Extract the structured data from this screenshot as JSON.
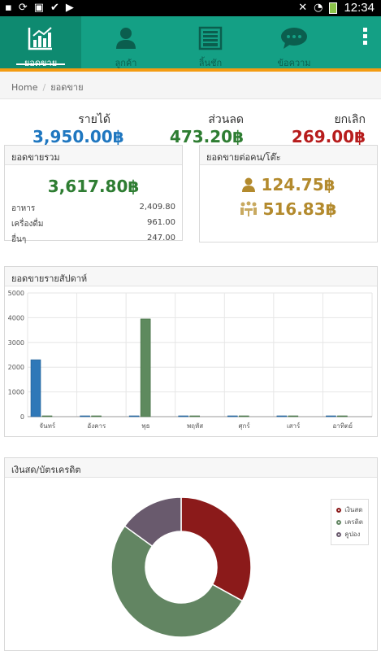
{
  "statusbar": {
    "time": "12:34"
  },
  "nav": {
    "tabs": [
      {
        "label": "ยอดขาย",
        "icon": "bar-chart-icon",
        "active": true
      },
      {
        "label": "ลูกค้า",
        "icon": "user-icon",
        "active": false
      },
      {
        "label": "ลิ้นชัก",
        "icon": "drawer-icon",
        "active": false
      },
      {
        "label": "ข้อความ",
        "icon": "chat-icon",
        "active": false
      }
    ]
  },
  "breadcrumb": {
    "home": "Home",
    "current": "ยอดขาย"
  },
  "summary": {
    "revenue": {
      "title": "รายได้",
      "value": "3,950.00฿",
      "color": "#1f77c0"
    },
    "discount": {
      "title": "ส่วนลด",
      "value": "473.20฿",
      "color": "#2e7d32"
    },
    "cancel": {
      "title": "ยกเลิก",
      "value": "269.00฿",
      "color": "#b71c1c"
    }
  },
  "total_sales": {
    "title": "ยอดขายรวม",
    "value": "3,617.80฿",
    "rows": [
      {
        "label": "อาหาร",
        "value": "2,409.80"
      },
      {
        "label": "เครื่องดื่ม",
        "value": "961.00"
      },
      {
        "label": "อื่นๆ",
        "value": "247.00"
      }
    ]
  },
  "per_customer": {
    "title": "ยอดขายต่อคน/โต๊ะ",
    "per_person": "124.75฿",
    "per_table": "516.83฿"
  },
  "weekly": {
    "title": "ยอดขายรายสัปดาห์",
    "chart_data": {
      "type": "bar",
      "categories": [
        "จันทร์",
        "อังคาร",
        "พุธ",
        "พฤหัส",
        "ศุกร์",
        "เสาร์",
        "อาทิตย์"
      ],
      "series": [
        {
          "values": [
            2300,
            0,
            0,
            0,
            0,
            0,
            0
          ],
          "color": "#2f78b8"
        },
        {
          "values": [
            0,
            0,
            3950,
            0,
            0,
            0,
            0
          ],
          "color": "#5e8a5e"
        }
      ],
      "ylim": [
        0,
        5000
      ],
      "yticks": [
        0,
        1000,
        2000,
        3000,
        4000,
        5000
      ],
      "grid": true
    }
  },
  "payment": {
    "title": "เงินสด/บัตรเครดิต",
    "chart_data": {
      "type": "pie",
      "labels": [
        "เงินสด",
        "เครดิต",
        "คูปอง"
      ],
      "values": [
        33,
        52,
        15
      ],
      "colors": [
        "#8b1a1a",
        "#628562",
        "#695a6d"
      ],
      "legend": "top-right"
    }
  }
}
